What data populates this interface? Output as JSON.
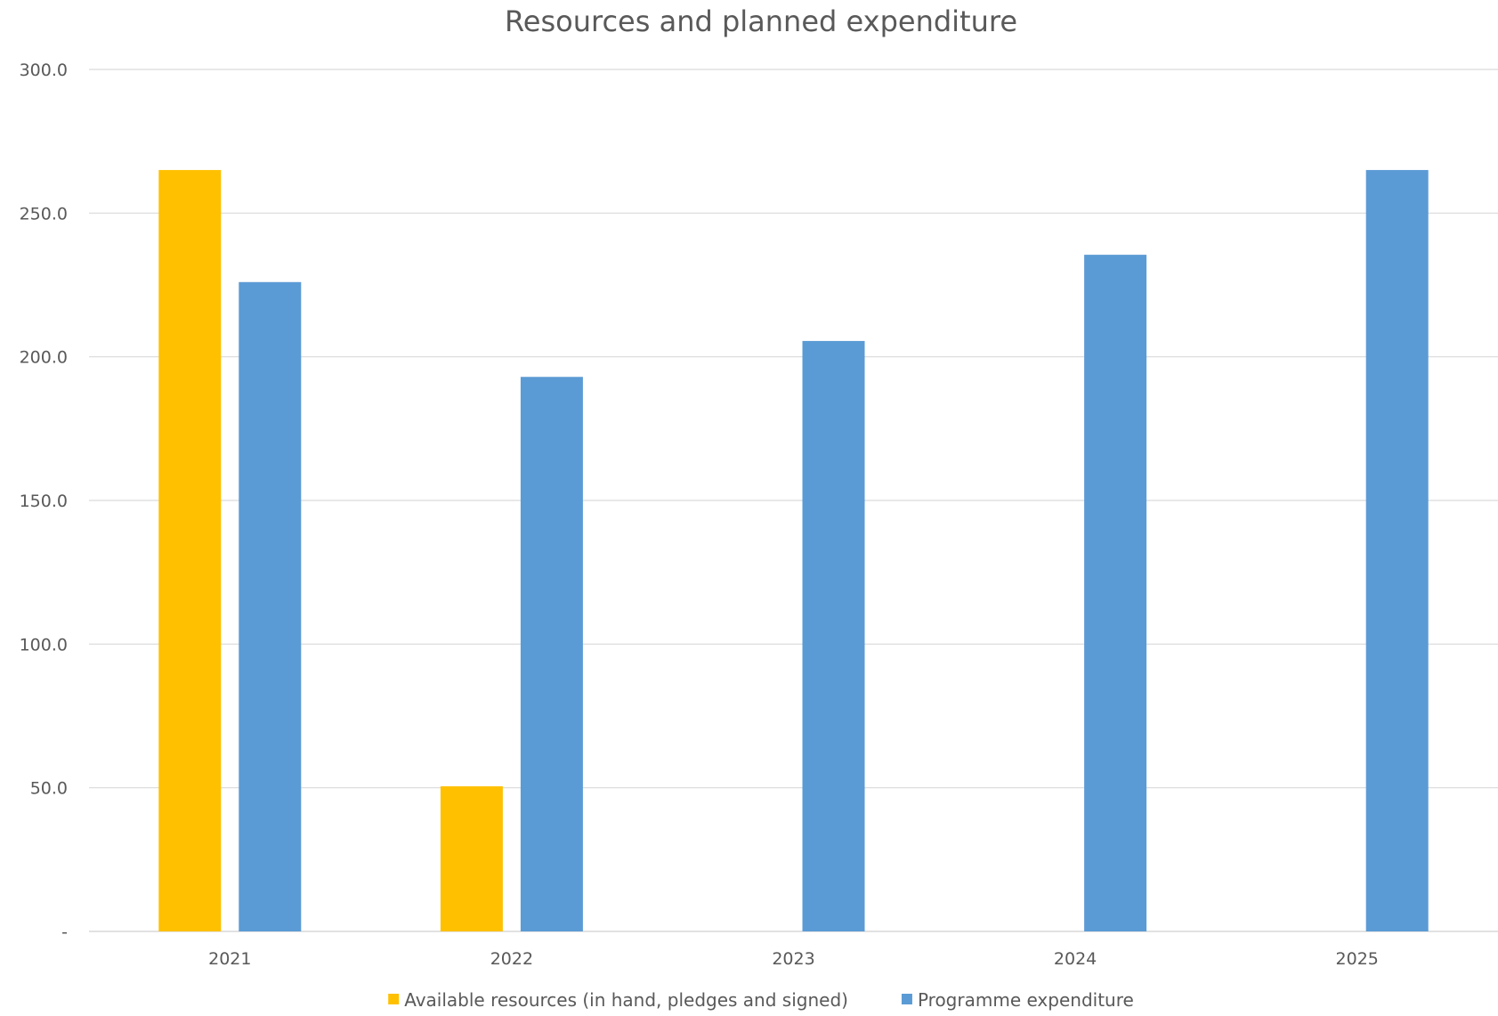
{
  "chart_data": {
    "type": "bar",
    "title": "Resources and planned expenditure",
    "categories": [
      "2021",
      "2022",
      "2023",
      "2024",
      "2025"
    ],
    "series": [
      {
        "name": "Available resources (in hand, pledges and signed)",
        "color": "#FFC000",
        "values": [
          265.0,
          50.5,
          0,
          0,
          0
        ]
      },
      {
        "name": "Programme expenditure",
        "color": "#5B9BD5",
        "values": [
          226.0,
          193.0,
          205.5,
          235.5,
          265.0
        ]
      }
    ],
    "y_ticks": [
      "-",
      "50.0",
      "100.0",
      "150.0",
      "200.0",
      "250.0",
      "300.0"
    ],
    "ylim": [
      0,
      300
    ],
    "grid": true,
    "legend_position": "bottom"
  }
}
